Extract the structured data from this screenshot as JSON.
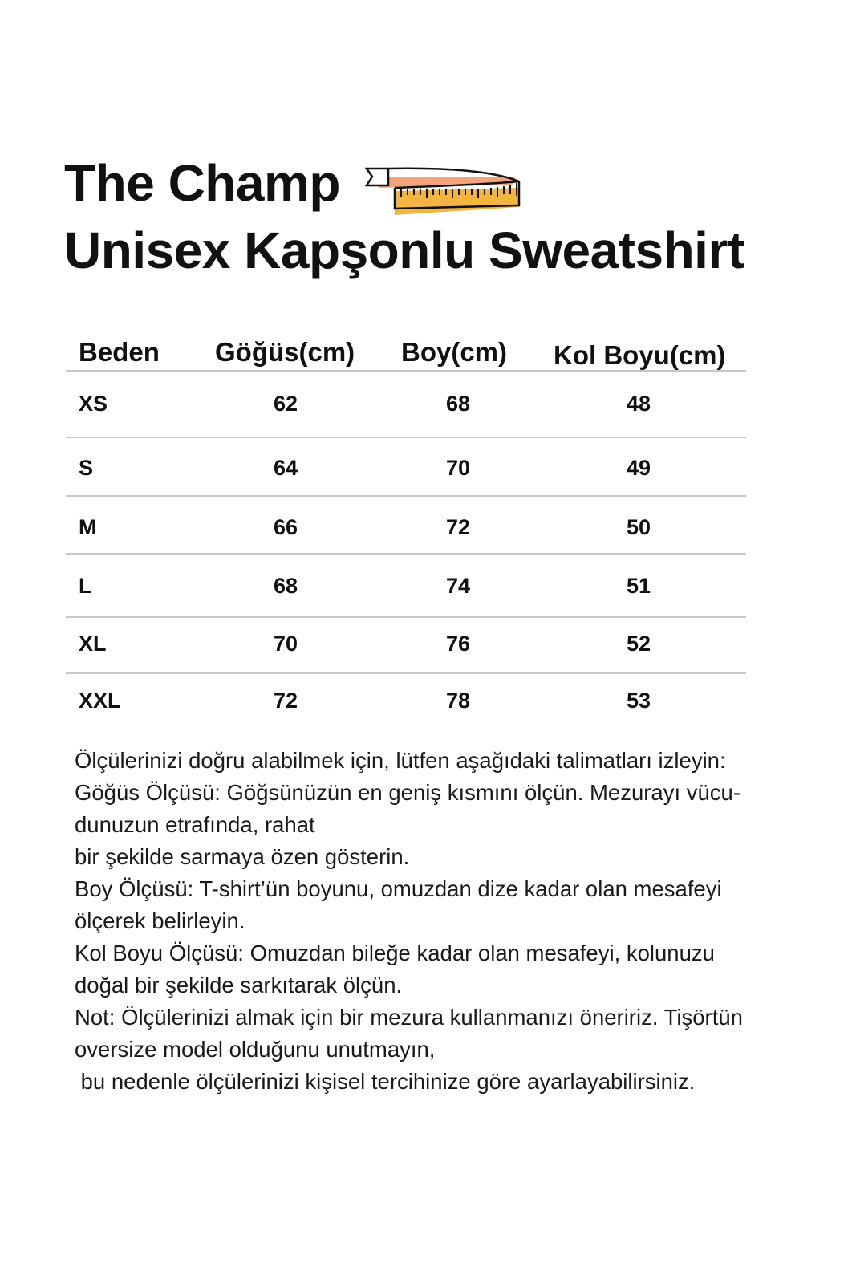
{
  "title": {
    "line1": "The Champ",
    "line2": "Unisex Kapşonlu Sweatshirt",
    "icon": "tape-measure-icon"
  },
  "colors": {
    "tape_orange": "#f0a37c",
    "tape_yellow": "#f2b640",
    "rule": "#c8c8c8"
  },
  "table": {
    "headers": [
      "Beden",
      "Göğüs(cm)",
      "Boy(cm)",
      "Kol Boyu(cm)"
    ],
    "rows": [
      [
        "XS",
        "62",
        "68",
        "48"
      ],
      [
        "S",
        "64",
        "70",
        "49"
      ],
      [
        "M",
        "66",
        "72",
        "50"
      ],
      [
        "L",
        "68",
        "74",
        "51"
      ],
      [
        "XL",
        "70",
        "76",
        "52"
      ],
      [
        "XXL",
        "72",
        "78",
        "53"
      ]
    ]
  },
  "notes": [
    "Ölçülerinizi doğru alabilmek için, lütfen aşağıdaki talimatları izleyin:",
    "Göğüs Ölçüsü: Göğsünüzün en geniş kısmını ölçün. Mezurayı vücu-",
    "dunuzun etrafında, rahat",
    "bir şekilde sarmaya özen gösterin.",
    "Boy Ölçüsü: T-shirt’ün boyunu, omuzdan dize kadar olan mesafeyi",
    "ölçerek belirleyin.",
    "Kol Boyu Ölçüsü: Omuzdan bileğe kadar olan mesafeyi, kolunuzu",
    "doğal bir şekilde sarkıtarak ölçün.",
    "Not: Ölçülerinizi almak için bir mezura kullanmanızı öneririz. Tişörtün",
    "oversize model olduğunu unutmayın,",
    " bu nedenle ölçülerinizi kişisel tercihinize göre ayarlayabilirsiniz."
  ]
}
